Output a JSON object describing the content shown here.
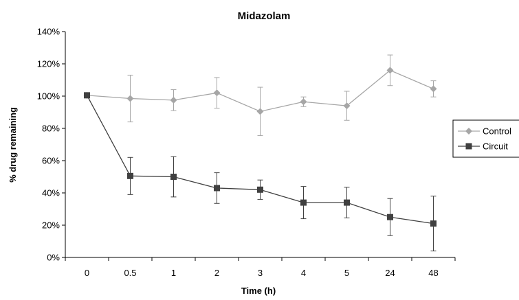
{
  "chart_data": {
    "type": "line",
    "title": "Midazolam",
    "xlabel": "Time (h)",
    "ylabel": "% drug remaining",
    "categories": [
      "0",
      "0.5",
      "1",
      "2",
      "3",
      "4",
      "5",
      "24",
      "48"
    ],
    "ylim": [
      0,
      140
    ],
    "yticks": [
      0,
      20,
      40,
      60,
      80,
      100,
      120,
      140
    ],
    "ytick_labels": [
      "0%",
      "20%",
      "40%",
      "60%",
      "80%",
      "100%",
      "120%",
      "140%"
    ],
    "grid": false,
    "legend_position": "right",
    "series": [
      {
        "name": "Control",
        "marker": "diamond",
        "color": "#a6a6a6",
        "values": [
          100.5,
          98.5,
          97.5,
          102,
          90.5,
          96.5,
          94,
          116,
          104.5
        ],
        "error": [
          0,
          14.5,
          6.5,
          9.5,
          15,
          3,
          9,
          9.5,
          5
        ]
      },
      {
        "name": "Circuit",
        "marker": "square",
        "color": "#404040",
        "values": [
          100.5,
          50.5,
          50,
          43,
          42,
          34,
          34,
          25,
          21
        ],
        "error": [
          0,
          11.5,
          12.5,
          9.5,
          6,
          10,
          9.5,
          11.5,
          17
        ]
      }
    ]
  }
}
